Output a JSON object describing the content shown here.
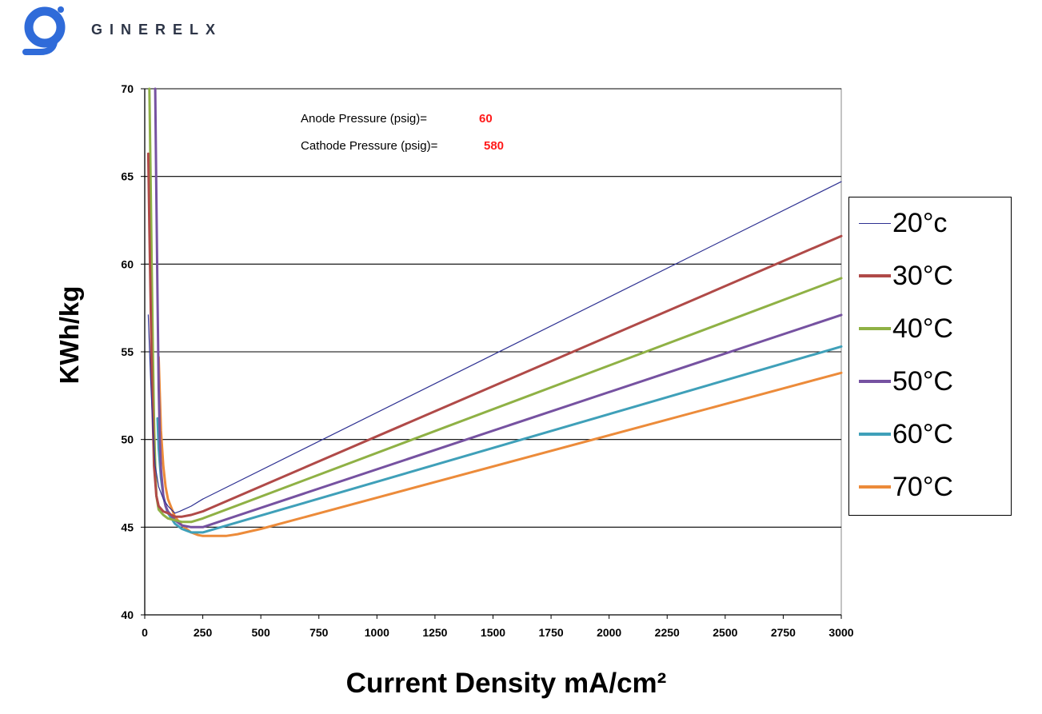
{
  "logo": {
    "text": "GINERELX",
    "color": "#2f6bd9"
  },
  "chart_data": {
    "type": "line",
    "title": "",
    "xlabel": "Current Density  mA/cm²",
    "ylabel": "KWh/kg",
    "xlim": [
      0,
      3000
    ],
    "ylim": [
      40,
      70
    ],
    "xticks": [
      0,
      250,
      500,
      750,
      1000,
      1250,
      1500,
      1750,
      2000,
      2250,
      2500,
      2750,
      3000
    ],
    "yticks": [
      40,
      45,
      50,
      55,
      60,
      65,
      70
    ],
    "grid": "horizontal",
    "legend": "right",
    "annotations": [
      {
        "label": "Anode Pressure (psig)=",
        "value": "60"
      },
      {
        "label": "Cathode Pressure (psig)=",
        "value": "580"
      }
    ],
    "series": [
      {
        "name": "20°c",
        "color": "#2e3192",
        "width": 1.2,
        "x": [
          15,
          25,
          35,
          45,
          60,
          80,
          100,
          130,
          150,
          200,
          250,
          3000
        ],
        "y": [
          57.1,
          53.5,
          50.5,
          48.5,
          47.3,
          46.6,
          46.2,
          45.8,
          45.9,
          46.2,
          46.6,
          64.7
        ]
      },
      {
        "name": "30°C",
        "color": "#b04a48",
        "width": 3,
        "x": [
          15,
          20,
          25,
          30,
          35,
          40,
          50,
          60,
          80,
          100,
          130,
          160,
          200,
          250,
          3000
        ],
        "y": [
          66.3,
          62,
          58,
          54,
          51,
          48.5,
          46.8,
          46.2,
          45.9,
          45.8,
          45.6,
          45.6,
          45.7,
          45.9,
          61.6
        ]
      },
      {
        "name": "40°C",
        "color": "#8fb145",
        "width": 3,
        "x": [
          20,
          25,
          30,
          35,
          40,
          45,
          50,
          60,
          80,
          100,
          130,
          160,
          200,
          250,
          3000
        ],
        "y": [
          70,
          65,
          60,
          55,
          51,
          48.5,
          46.8,
          46.0,
          45.7,
          45.5,
          45.4,
          45.3,
          45.3,
          45.5,
          59.2
        ]
      },
      {
        "name": "50°C",
        "color": "#7652a1",
        "width": 3,
        "x": [
          45,
          50,
          55,
          60,
          65,
          70,
          80,
          90,
          100,
          130,
          160,
          200,
          250,
          3000
        ],
        "y": [
          70,
          64,
          58,
          53,
          50,
          48.3,
          46.8,
          46.2,
          45.9,
          45.4,
          45.1,
          45.0,
          45.0,
          57.1
        ]
      },
      {
        "name": "60°C",
        "color": "#3fa0b9",
        "width": 3,
        "x": [
          55,
          60,
          70,
          80,
          90,
          100,
          130,
          160,
          200,
          250,
          3000
        ],
        "y": [
          51.2,
          49.5,
          47.8,
          46.8,
          46.2,
          45.8,
          45.2,
          44.9,
          44.7,
          44.7,
          55.3
        ]
      },
      {
        "name": "70°C",
        "color": "#ec8b3a",
        "width": 3,
        "x": [
          60,
          65,
          70,
          80,
          90,
          100,
          130,
          160,
          200,
          230,
          250,
          300,
          350,
          400,
          500,
          3000
        ],
        "y": [
          54.7,
          52.5,
          50.5,
          48.5,
          47.3,
          46.6,
          45.6,
          45.1,
          44.7,
          44.55,
          44.5,
          44.5,
          44.5,
          44.6,
          44.9,
          53.8
        ]
      }
    ]
  }
}
